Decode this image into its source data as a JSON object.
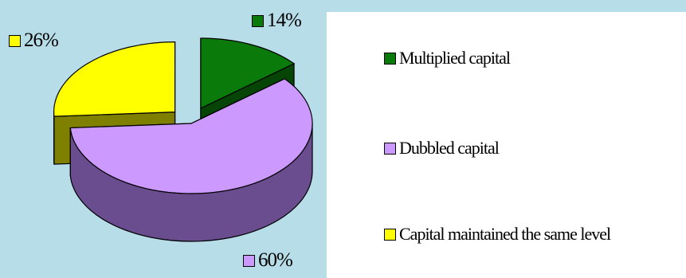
{
  "chart_data": {
    "type": "pie",
    "categories": [
      "Multiplied capital",
      "Dubbled capital",
      "Capital maintained the same level"
    ],
    "values": [
      14,
      60,
      26
    ],
    "labels": [
      "14%",
      "60%",
      "26%"
    ],
    "colors": [
      "#0a7a0a",
      "#cc99ff",
      "#ffff00"
    ],
    "side_colors": [
      "#064506",
      "#6a4d8f",
      "#7f7f00"
    ],
    "exploded": [
      true,
      false,
      true
    ],
    "style": "3d",
    "legend_position": "right"
  },
  "colors": {
    "background": "#b7dde8",
    "legend_panel": "#ffffff"
  }
}
